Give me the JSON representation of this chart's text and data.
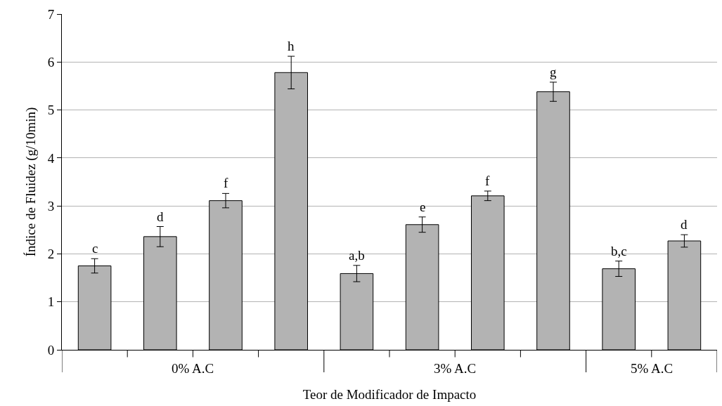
{
  "chart_data": {
    "type": "bar",
    "xlabel": "Teor de Modificador de Impacto",
    "ylabel": "Índice de Fluidez (g/10min)",
    "categories": [
      null,
      null,
      null,
      null,
      null,
      null,
      null,
      null,
      null,
      null
    ],
    "values": [
      1.75,
      2.36,
      3.11,
      5.78,
      1.59,
      2.61,
      3.21,
      5.38,
      1.69,
      2.27
    ],
    "errors": [
      0.15,
      0.21,
      0.15,
      0.34,
      0.17,
      0.16,
      0.1,
      0.2,
      0.16,
      0.13
    ],
    "value_labels": [
      "c",
      "d",
      "f",
      "h",
      "a,b",
      "e",
      "f",
      "g",
      "b,c",
      "d"
    ],
    "color": "#b3b3b3",
    "annotations": [
      "0% A.C",
      "3% A.C",
      "5% A.C"
    ],
    "ylim": [
      0,
      7
    ],
    "yticks": [
      0,
      1,
      2,
      3,
      4,
      5,
      6,
      7
    ],
    "grid": "y"
  }
}
